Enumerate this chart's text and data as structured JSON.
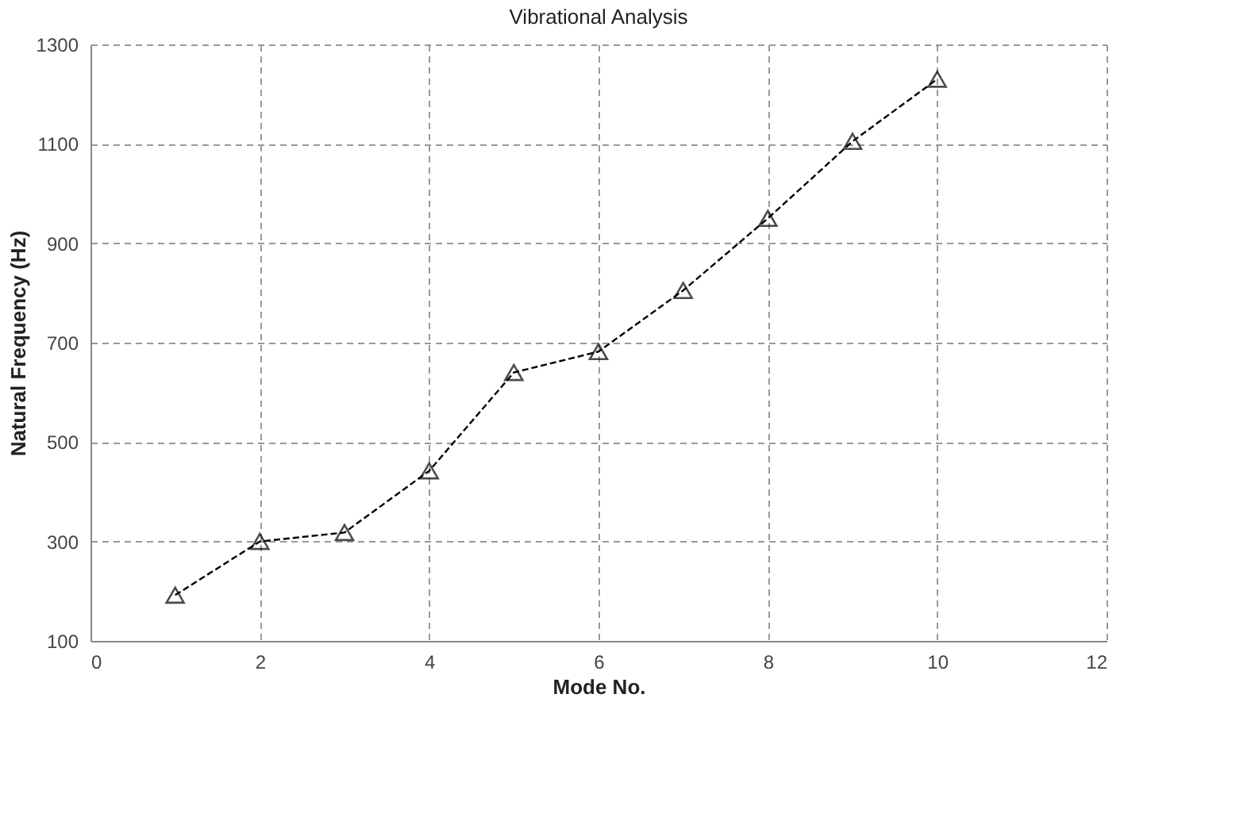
{
  "chart_data": {
    "type": "line",
    "title": "Vibrational Analysis",
    "xlabel": "Mode No.",
    "ylabel": "Natural Frequency (Hz)",
    "x": [
      1,
      2,
      3,
      4,
      5,
      6,
      7,
      8,
      9,
      10
    ],
    "series": [
      {
        "color": "#000000",
        "values": [
          192,
          300,
          318,
          442,
          640,
          682,
          805,
          950,
          1105,
          1230
        ]
      }
    ],
    "xlim": [
      0,
      12
    ],
    "xticks": [
      0,
      2,
      4,
      6,
      8,
      10,
      12
    ],
    "ylim": [
      100,
      1300
    ],
    "yticks": [
      100,
      300,
      500,
      700,
      900,
      1100,
      1300
    ],
    "grid": true,
    "marker": "triangle",
    "line_style": "dashed"
  }
}
